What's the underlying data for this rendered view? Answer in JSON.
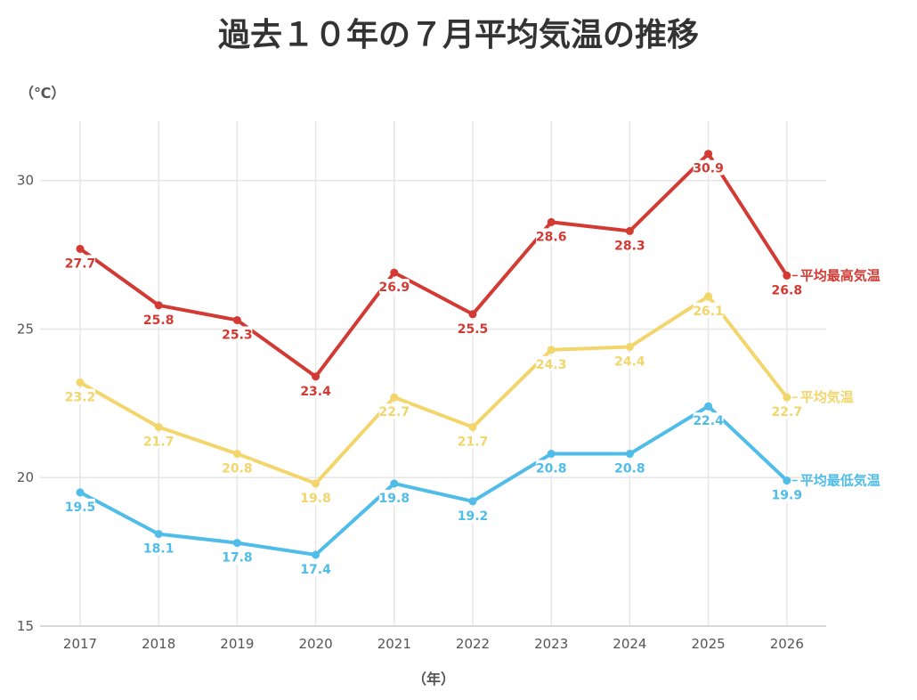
{
  "chart_data": {
    "type": "line",
    "title": "過去１０年の７月平均気温の推移",
    "ylabel": "（℃）",
    "xlabel": "（年）",
    "x": [
      "2017",
      "2018",
      "2019",
      "2020",
      "2021",
      "2022",
      "2023",
      "2024",
      "2025",
      "2026"
    ],
    "ylim": [
      15,
      32
    ],
    "yticks": [
      "15",
      "20",
      "25",
      "30"
    ],
    "grid": true,
    "series": [
      {
        "name": "平均最高気温",
        "color": "#d23a33",
        "values": [
          27.7,
          25.8,
          25.3,
          23.4,
          26.9,
          25.5,
          28.6,
          28.3,
          30.9,
          26.8
        ],
        "labels": [
          "27.7",
          "25.8",
          "25.3",
          "23.4",
          "26.9",
          "25.5",
          "28.6",
          "28.3",
          "30.9",
          "26.8"
        ]
      },
      {
        "name": "平均気温",
        "color": "#f2d56b",
        "values": [
          23.2,
          21.7,
          20.8,
          19.8,
          22.7,
          21.7,
          24.3,
          24.4,
          26.1,
          22.7
        ],
        "labels": [
          "23.2",
          "21.7",
          "20.8",
          "19.8",
          "22.7",
          "21.7",
          "24.3",
          "24.4",
          "26.1",
          "22.7"
        ]
      },
      {
        "name": "平均最低気温",
        "color": "#4fbde8",
        "values": [
          19.5,
          18.1,
          17.8,
          17.4,
          19.8,
          19.2,
          20.8,
          20.8,
          22.4,
          19.9
        ],
        "labels": [
          "19.5",
          "18.1",
          "17.8",
          "17.4",
          "19.8",
          "19.2",
          "20.8",
          "20.8",
          "22.4",
          "19.9"
        ]
      }
    ]
  }
}
